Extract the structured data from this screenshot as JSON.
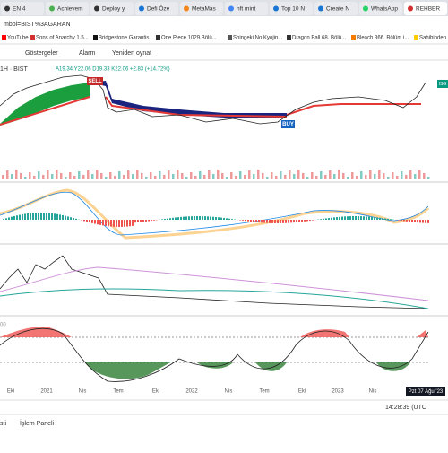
{
  "browser": {
    "tabs": [
      "EN 4",
      "Achievem",
      "Deploy y",
      "Defi Öze",
      "MetaMas",
      "nft mint",
      "Top 10 N",
      "Create N",
      "WhatsApp",
      "REHBER"
    ],
    "url": "mbol=BIST%3AGARAN",
    "bookmarks": [
      "YouTube",
      "Sons of Anarchy 1.5...",
      "Bridgestone Garantis",
      "One Piece 1029.Bölü...",
      "Shingeki No Kyojin...",
      "Dragon Ball 68. Bölü...",
      "Bleach 366. Bölüm i...",
      "Sahibinden"
    ]
  },
  "toolbar": {
    "indicators": "Göstergeler",
    "alert": "Alarm",
    "replay": "Yeniden oynat"
  },
  "chart": {
    "symbol": "1H · BIST",
    "ohlc": "A19.34 Y22.06 D19.33 K22.06 +2.83 (+14.72%)",
    "sell": "SELL",
    "buy": "BUY",
    "price_tag": "ISG",
    "osc_label": "00",
    "x_labels": [
      "Eki",
      "2021",
      "Nis",
      "Tem",
      "Eki",
      "2022",
      "Nis",
      "Tem",
      "Eki",
      "2023",
      "Nis"
    ],
    "cursor_date": "Pzt 07 Ağu '23"
  },
  "footer": {
    "left": "sti",
    "panel": "İşlem Paneli",
    "time": "14:28:39 (UTC"
  }
}
